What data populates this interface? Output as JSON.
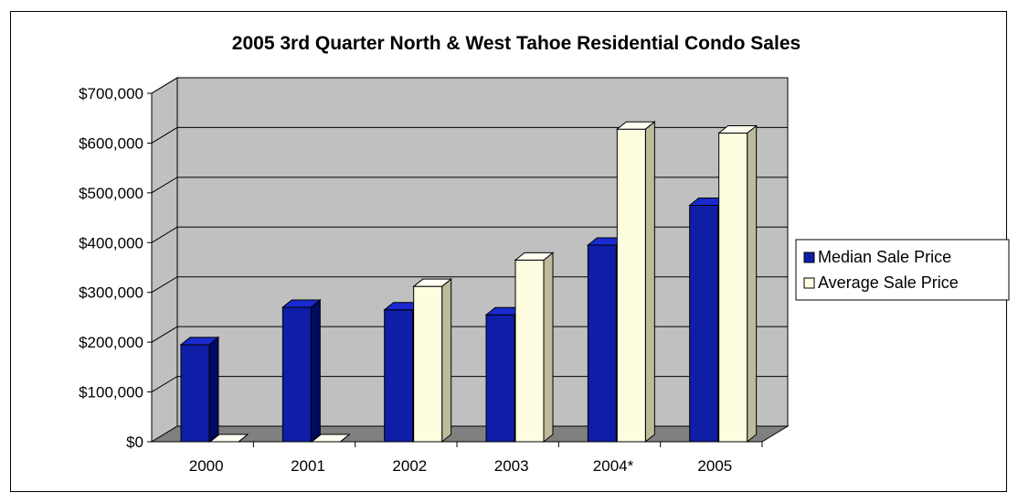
{
  "chart_data": {
    "type": "bar",
    "title": "2005 3rd Quarter North & West Tahoe Residential Condo Sales",
    "categories": [
      "2000",
      "2001",
      "2002",
      "2003",
      "2004*",
      "2005"
    ],
    "series": [
      {
        "name": "Median Sale Price",
        "values": [
          195000,
          270000,
          265000,
          255000,
          395000,
          475000
        ],
        "color": "#0f1ea6"
      },
      {
        "name": "Average Sale Price",
        "values": [
          0,
          0,
          312000,
          365000,
          628000,
          620000
        ],
        "color": "#fffde0"
      }
    ],
    "ylim": [
      0,
      700000
    ],
    "yticks": [
      "$0",
      "$100,000",
      "$200,000",
      "$300,000",
      "$400,000",
      "$500,000",
      "$600,000",
      "$700,000"
    ],
    "grid": true,
    "legend_position": "right",
    "wall_color": "#c0c0c0",
    "floor_color": "#808080"
  }
}
